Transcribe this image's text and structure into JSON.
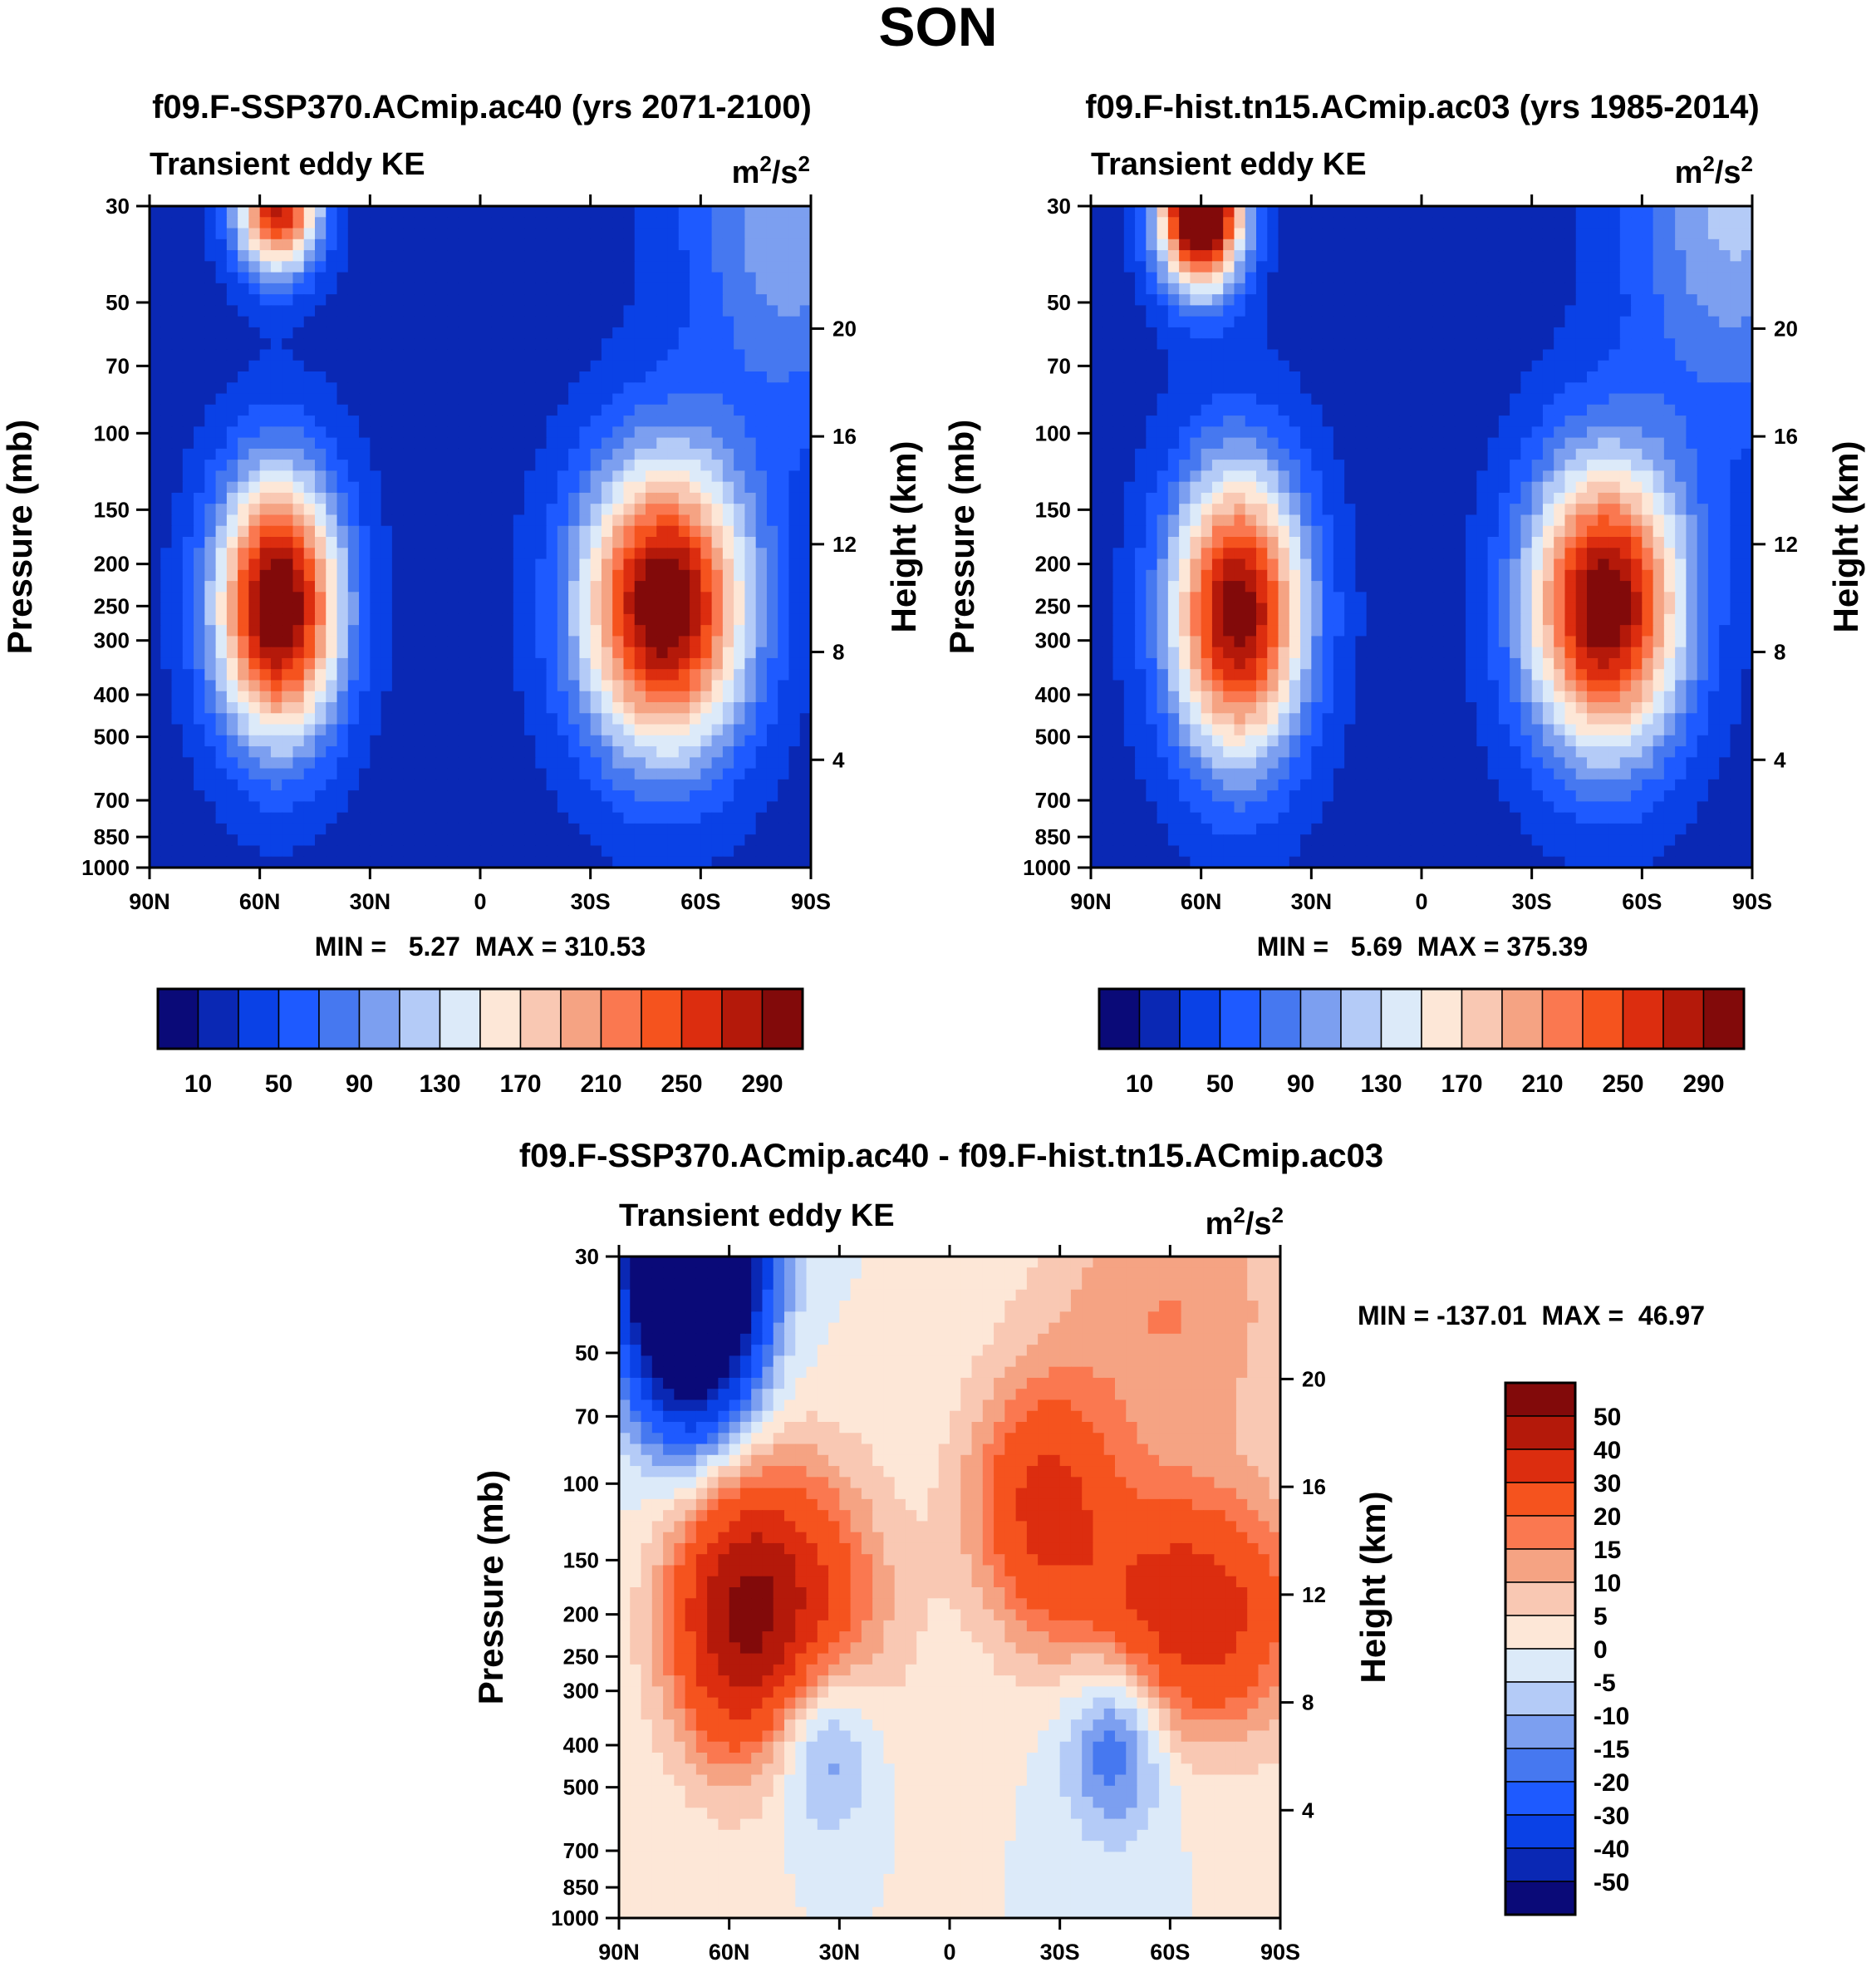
{
  "chart_data": [
    {
      "type": "heatmap",
      "title": "f09.F-SSP370.ACmip.ac40 (yrs 2071-2100)",
      "season": "SON",
      "variable": "Transient eddy KE",
      "units": "m²/s²",
      "units_base": "m",
      "units_exp1": "2",
      "units_mid": "/s",
      "units_exp2": "2",
      "xlabel": "",
      "ylabel": "Pressure (mb)",
      "ylabel_right": "Height (km)",
      "x_ticks": [
        "90N",
        "60N",
        "30N",
        "0",
        "30S",
        "60S",
        "90S"
      ],
      "y_ticks": [
        "30",
        "50",
        "70",
        "100",
        "150",
        "200",
        "250",
        "300",
        "400",
        "500",
        "700",
        "850",
        "1000"
      ],
      "y_right_ticks": [
        "20",
        "16",
        "12",
        "8",
        "4"
      ],
      "stats_text": "MIN =   5.27  MAX = 310.53",
      "min": 5.27,
      "max": 310.53,
      "colorbar_labels": [
        "10",
        "50",
        "90",
        "130",
        "170",
        "210",
        "250",
        "290"
      ],
      "field": [
        {
          "lat": -50,
          "p": 250,
          "amp": 300,
          "sx": 16,
          "sy": 0.55
        },
        {
          "lat": 55,
          "p": 250,
          "amp": 305,
          "sx": 12,
          "sy": 0.5
        },
        {
          "lat": 55,
          "p": 30,
          "amp": 260,
          "sx": 8,
          "sy": 0.25
        },
        {
          "lat": -85,
          "p": 30,
          "amp": 90,
          "sx": 20,
          "sy": 0.8
        }
      ]
    },
    {
      "type": "heatmap",
      "title": "f09.F-hist.tn15.ACmip.ac03 (yrs 1985-2014)",
      "season": "SON",
      "variable": "Transient eddy KE",
      "units": "m²/s²",
      "units_base": "m",
      "units_exp1": "2",
      "units_mid": "/s",
      "units_exp2": "2",
      "xlabel": "",
      "ylabel": "Pressure (mb)",
      "ylabel_right": "Height (km)",
      "x_ticks": [
        "90N",
        "60N",
        "30N",
        "0",
        "30S",
        "60S",
        "90S"
      ],
      "y_ticks": [
        "30",
        "50",
        "70",
        "100",
        "150",
        "200",
        "250",
        "300",
        "400",
        "500",
        "700",
        "850",
        "1000"
      ],
      "y_right_ticks": [
        "20",
        "16",
        "12",
        "8",
        "4"
      ],
      "stats_text": "MIN =   5.69  MAX = 375.39",
      "min": 5.69,
      "max": 375.39,
      "colorbar_labels": [
        "10",
        "50",
        "90",
        "130",
        "170",
        "210",
        "250",
        "290"
      ],
      "field": [
        {
          "lat": -50,
          "p": 250,
          "amp": 295,
          "sx": 15,
          "sy": 0.55
        },
        {
          "lat": 50,
          "p": 260,
          "amp": 285,
          "sx": 13,
          "sy": 0.55
        },
        {
          "lat": 60,
          "p": 30,
          "amp": 370,
          "sx": 8,
          "sy": 0.3
        },
        {
          "lat": -85,
          "p": 30,
          "amp": 95,
          "sx": 20,
          "sy": 0.8
        }
      ]
    },
    {
      "type": "heatmap",
      "title": "f09.F-SSP370.ACmip.ac40 - f09.F-hist.tn15.ACmip.ac03",
      "variable": "Transient eddy KE",
      "units": "m²/s²",
      "units_base": "m",
      "units_exp1": "2",
      "units_mid": "/s",
      "units_exp2": "2",
      "xlabel": "",
      "ylabel": "Pressure (mb)",
      "ylabel_right": "Height (km)",
      "x_ticks": [
        "90N",
        "60N",
        "30N",
        "0",
        "30S",
        "60S",
        "90S"
      ],
      "y_ticks": [
        "30",
        "50",
        "70",
        "100",
        "150",
        "200",
        "250",
        "300",
        "400",
        "500",
        "700",
        "850",
        "1000"
      ],
      "y_right_ticks": [
        "20",
        "16",
        "12",
        "8",
        "4"
      ],
      "stats_text": "MIN = -137.01  MAX =  46.97",
      "min": -137.01,
      "max": 46.97,
      "colorbar_labels": [
        "50",
        "40",
        "30",
        "20",
        "15",
        "10",
        "5",
        "0",
        "-5",
        "-10",
        "-15",
        "-20",
        "-30",
        "-40",
        "-50"
      ],
      "field": [
        {
          "lat": -65,
          "p": 200,
          "amp": 38,
          "sx": 22,
          "sy": 0.45
        },
        {
          "lat": -25,
          "p": 110,
          "amp": 30,
          "sx": 14,
          "sy": 0.45
        },
        {
          "lat": 45,
          "p": 200,
          "amp": 38,
          "sx": 18,
          "sy": 0.55
        },
        {
          "lat": 60,
          "p": 200,
          "amp": 25,
          "sx": 12,
          "sy": 0.5
        },
        {
          "lat": -45,
          "p": 380,
          "amp": -24,
          "sx": 10,
          "sy": 0.35
        },
        {
          "lat": 35,
          "p": 380,
          "amp": -24,
          "sx": 10,
          "sy": 0.35
        },
        {
          "lat": 70,
          "p": 30,
          "amp": -137,
          "sx": 12,
          "sy": 0.55
        },
        {
          "lat": -60,
          "p": 40,
          "amp": 15,
          "sx": 25,
          "sy": 0.6
        }
      ]
    }
  ],
  "season_title": "SON",
  "colors": {
    "abs_scale": [
      "#0a0a78",
      "#0a28b4",
      "#0a41e6",
      "#1e5aff",
      "#4678f0",
      "#7c9ff0",
      "#b4cbf7",
      "#dceaf9",
      "#fde7d7",
      "#f9c8b3",
      "#f5a383",
      "#fa7850",
      "#f5531e",
      "#dc2d0f",
      "#b4190a",
      "#820a0a"
    ],
    "diff_scale": [
      "#820a0a",
      "#b4190a",
      "#dc2d0f",
      "#f5531e",
      "#fa7850",
      "#f5a383",
      "#f9c8b3",
      "#fde7d7",
      "#dceaf9",
      "#b4cbf7",
      "#7c9ff0",
      "#4678f0",
      "#1e5aff",
      "#0a41e6",
      "#0a28b4",
      "#0a0a78"
    ]
  }
}
